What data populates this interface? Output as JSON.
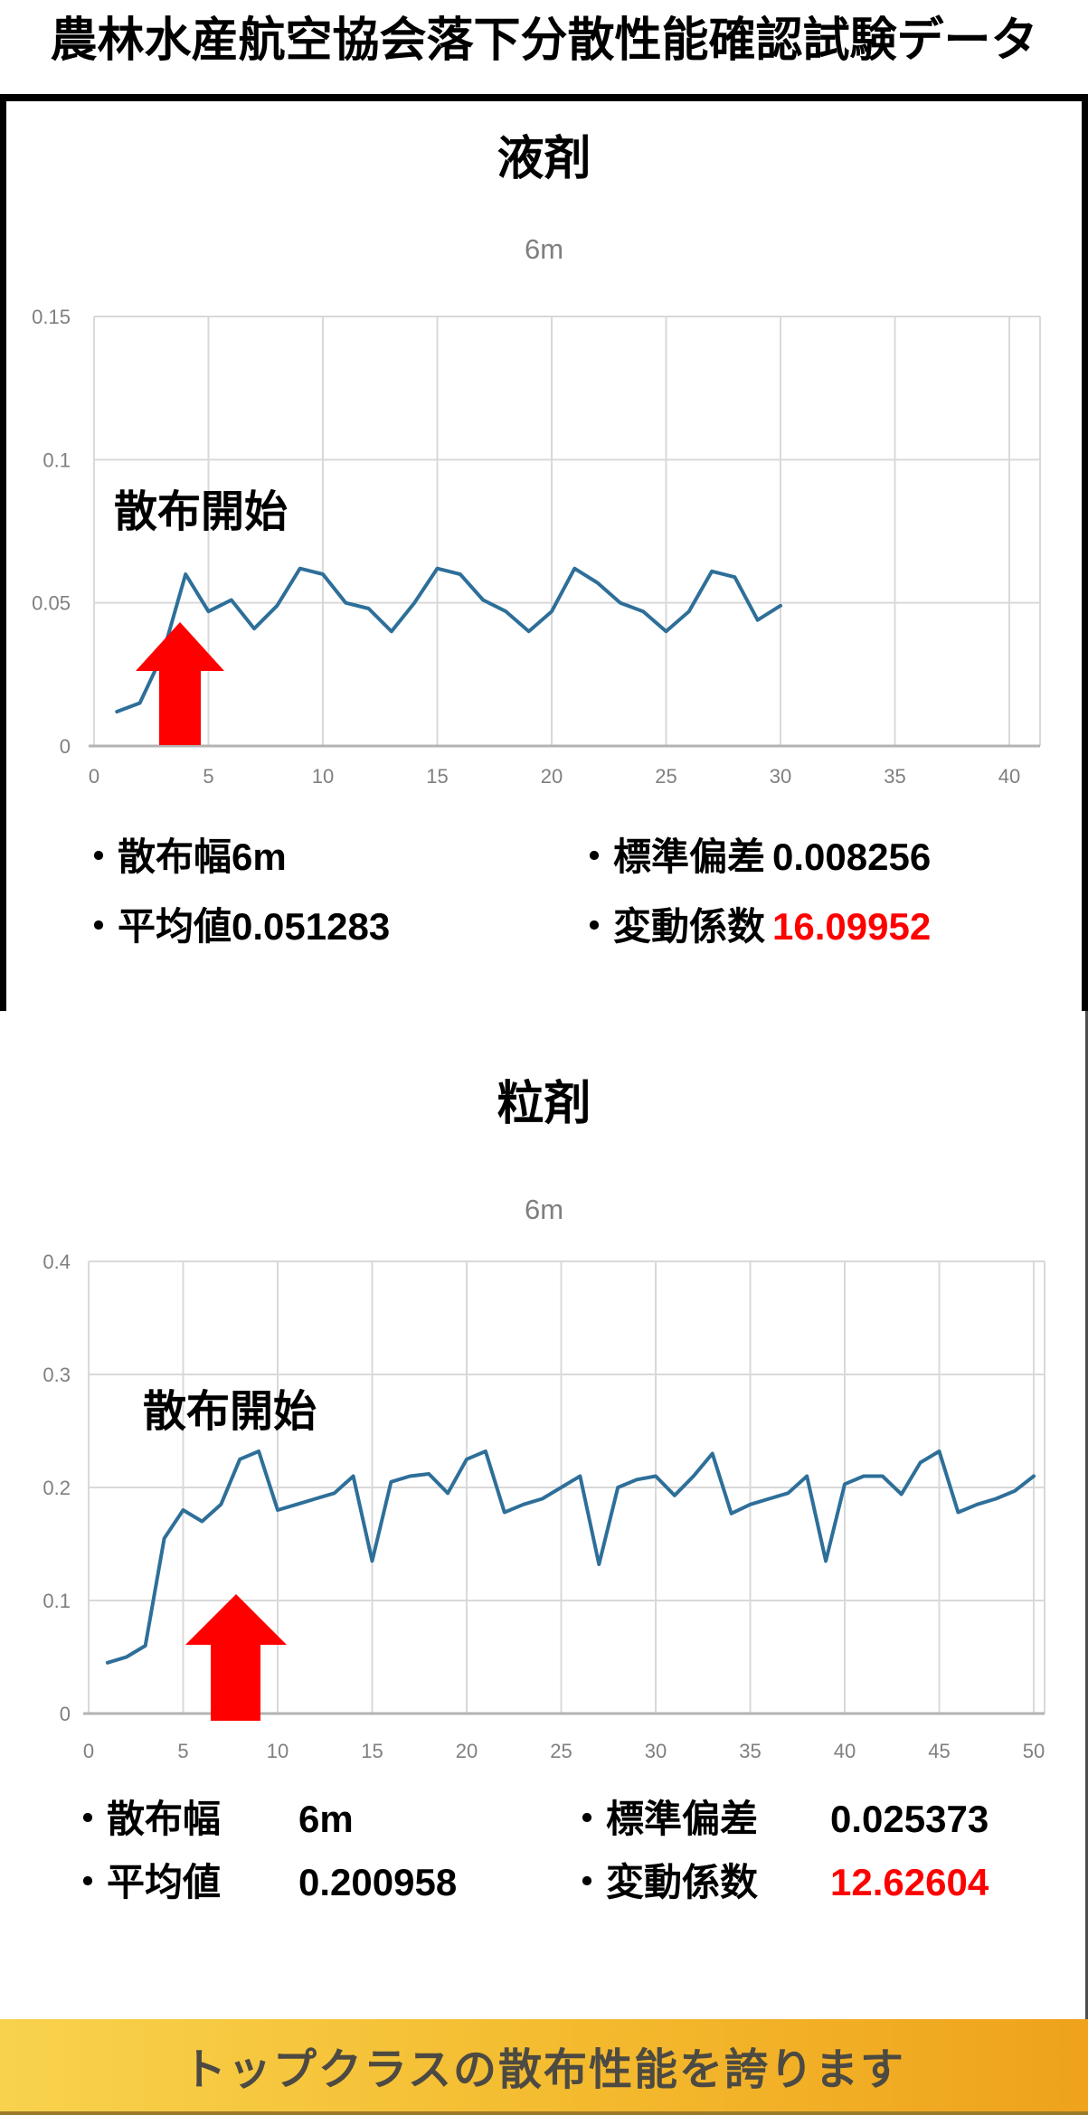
{
  "page": {
    "title": "農林水産航空協会落下分散性能確認試験データ",
    "banner": {
      "text": "トップクラスの散布性能を誇ります",
      "bg_from": "#f8d24d",
      "bg_to": "#efa21c",
      "text_color": "#4c4a42"
    },
    "accent_red": "#fe0000"
  },
  "sections": [
    {
      "heading": "液剤",
      "stats": {
        "rows": [
          [
            {
              "label": "・散布幅",
              "value": "6m"
            },
            {
              "label": "・標準偏差",
              "value": "0.008256"
            }
          ],
          [
            {
              "label": "・平均値",
              "value": "0.051283"
            },
            {
              "label": "・変動係数",
              "value": "16.09952"
            }
          ]
        ]
      },
      "chart_data": {
        "type": "line",
        "title": "液剤",
        "subtitle": "6m",
        "x": [
          1,
          2,
          3,
          4,
          5,
          6,
          7,
          8,
          9,
          10,
          11,
          12,
          13,
          14,
          15,
          16,
          17,
          18,
          19,
          20,
          21,
          22,
          23,
          24,
          25,
          26,
          27,
          28,
          29,
          30
        ],
        "y": [
          0.012,
          0.015,
          0.032,
          0.06,
          0.047,
          0.051,
          0.041,
          0.049,
          0.062,
          0.06,
          0.05,
          0.048,
          0.04,
          0.05,
          0.062,
          0.06,
          0.051,
          0.047,
          0.04,
          0.047,
          0.062,
          0.057,
          0.05,
          0.047,
          0.04,
          0.047,
          0.061,
          0.059,
          0.044,
          0.049
        ],
        "xlim": [
          0,
          40
        ],
        "ylim": [
          0,
          0.15
        ],
        "x_ticks": [
          0,
          5,
          10,
          15,
          20,
          25,
          30,
          35,
          40
        ],
        "y_ticks": [
          0,
          0.05,
          0.1,
          0.15
        ],
        "grid": true,
        "legend": "none",
        "line_color": "#2e6f99",
        "grid_color": "#d9d9d9",
        "axis_color": "#b3b3b3",
        "tick_color": "#7f7f7f",
        "annotation": {
          "text": "散布開始",
          "arrow_color": "#fe0000",
          "arrow_at_x": 4
        }
      }
    },
    {
      "heading": "粒剤",
      "stats": {
        "rows": [
          [
            {
              "label": "・散布幅",
              "value": "6m"
            },
            {
              "label": "・標準偏差",
              "value": "0.025373"
            }
          ],
          [
            {
              "label": "・平均値",
              "value": "0.200958"
            },
            {
              "label": "・変動係数",
              "value": "12.62604"
            }
          ]
        ]
      },
      "chart_data": {
        "type": "line",
        "title": "粒剤",
        "subtitle": "6m",
        "x": [
          1,
          2,
          3,
          4,
          5,
          6,
          7,
          8,
          9,
          10,
          11,
          12,
          13,
          14,
          15,
          16,
          17,
          18,
          19,
          20,
          21,
          22,
          23,
          24,
          25,
          26,
          27,
          28,
          29,
          30,
          31,
          32,
          33,
          34,
          35,
          36,
          37,
          38,
          39,
          40,
          41,
          42,
          43,
          44,
          45,
          46,
          47,
          48,
          49,
          50
        ],
        "y": [
          0.045,
          0.05,
          0.06,
          0.155,
          0.18,
          0.17,
          0.185,
          0.225,
          0.232,
          0.18,
          0.185,
          0.19,
          0.195,
          0.21,
          0.135,
          0.205,
          0.21,
          0.212,
          0.195,
          0.225,
          0.232,
          0.178,
          0.185,
          0.19,
          0.2,
          0.21,
          0.132,
          0.2,
          0.207,
          0.21,
          0.193,
          0.21,
          0.23,
          0.177,
          0.185,
          0.19,
          0.195,
          0.21,
          0.135,
          0.203,
          0.21,
          0.21,
          0.194,
          0.222,
          0.232,
          0.178,
          0.185,
          0.19,
          0.197,
          0.21
        ],
        "xlim": [
          0,
          50
        ],
        "ylim": [
          0,
          0.4
        ],
        "x_ticks": [
          0,
          5,
          10,
          15,
          20,
          25,
          30,
          35,
          40,
          45,
          50
        ],
        "y_ticks": [
          0,
          0.1,
          0.2,
          0.3,
          0.4
        ],
        "grid": true,
        "legend": "none",
        "line_color": "#2e6f99",
        "grid_color": "#d9d9d9",
        "axis_color": "#b3b3b3",
        "tick_color": "#7f7f7f",
        "annotation": {
          "text": "散布開始",
          "arrow_color": "#fe0000",
          "arrow_at_x": 8
        }
      }
    }
  ]
}
